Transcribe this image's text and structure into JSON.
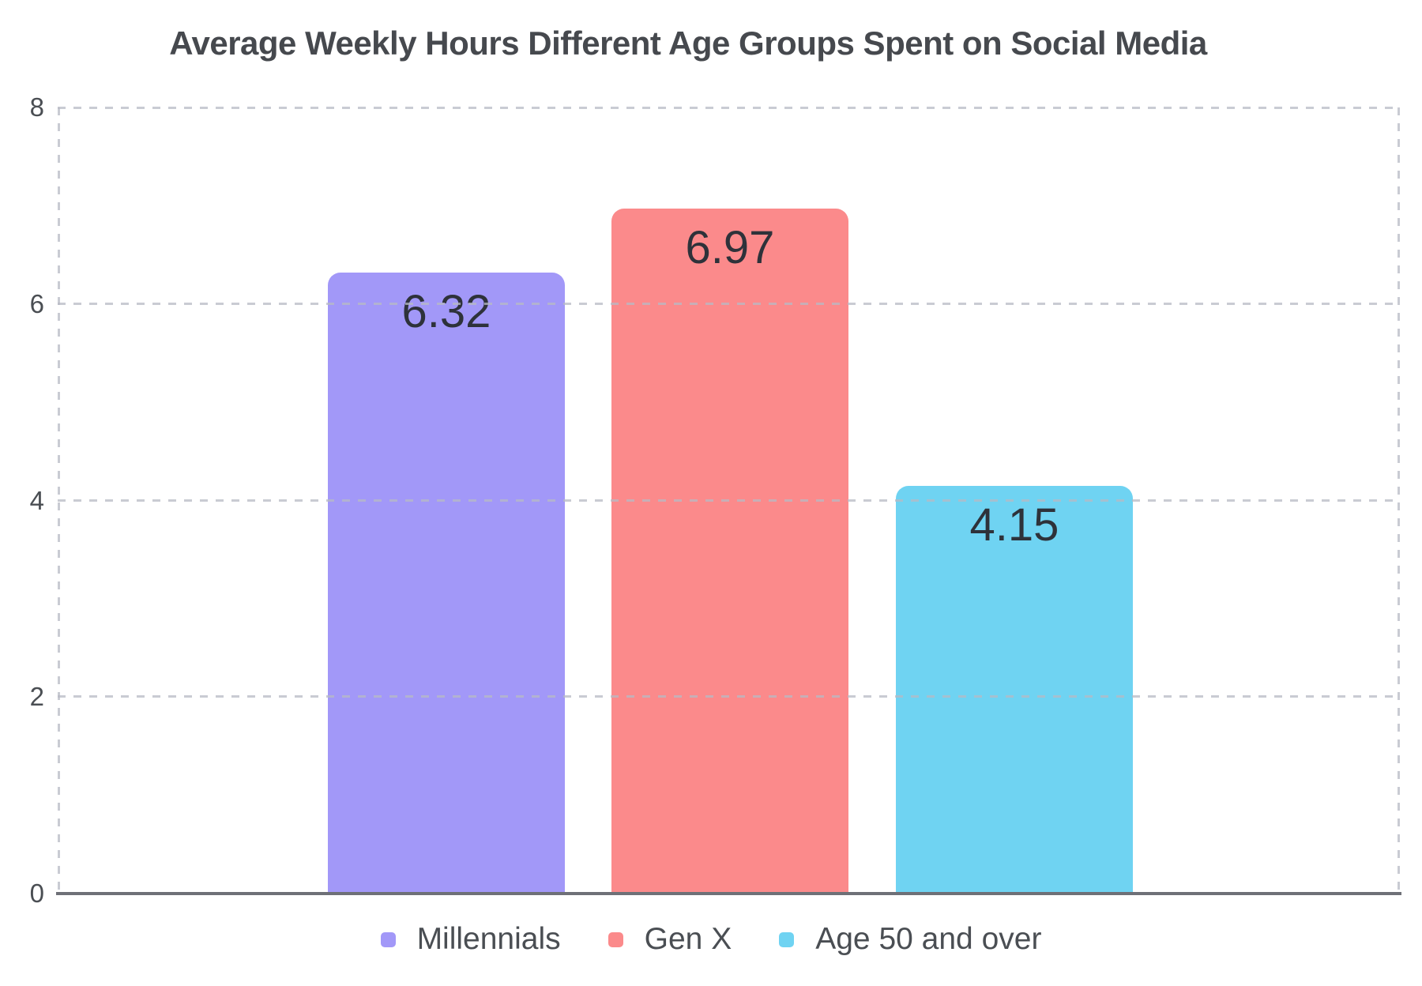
{
  "chart_data": {
    "type": "bar",
    "title": "Average Weekly Hours Different Age Groups Spent on Social Media",
    "categories": [
      "Millennials",
      "Gen X",
      "Age 50 and over"
    ],
    "values": [
      6.32,
      6.97,
      4.15
    ],
    "value_labels": [
      "6.32",
      "6.97",
      "4.15"
    ],
    "colors": [
      "#a298f8",
      "#fb8a8b",
      "#6fd3f2"
    ],
    "xlabel": "",
    "ylabel": "",
    "ylim": [
      0,
      8
    ],
    "yticks": [
      8,
      6,
      4,
      2,
      0
    ],
    "grid": "dashed horizontal gridlines with dashed left/right plot borders",
    "legend_position": "bottom",
    "axis_line_color": "#6e7077",
    "gridline_color": "#d2d4d9",
    "title_color": "#46494e",
    "label_color": "#2e323a",
    "tick_color": "#4a4e53"
  }
}
